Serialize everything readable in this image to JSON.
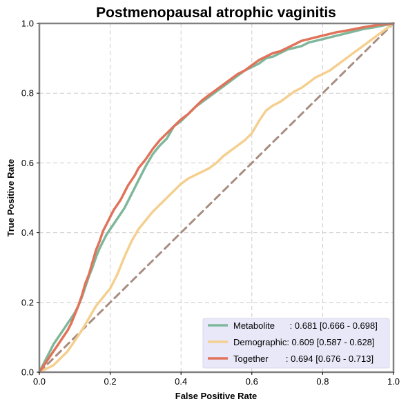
{
  "chart_data": {
    "type": "line",
    "title": "Postmenopausal atrophic vaginitis",
    "xlabel": "False Positive Rate",
    "ylabel": "True Positive Rate",
    "xlim": [
      0,
      1
    ],
    "ylim": [
      0,
      1
    ],
    "xticks": [
      "0.0",
      "0.2",
      "0.4",
      "0.6",
      "0.8",
      "1.0"
    ],
    "yticks": [
      "0.0",
      "0.2",
      "0.4",
      "0.6",
      "0.8",
      "1.0"
    ],
    "grid": true,
    "legend_position": "bottom-right",
    "colors": {
      "metabolite": "#7fb79a",
      "demographic": "#f5cf8f",
      "together": "#e0735a",
      "diagonal": "#a88d80",
      "grid": "#cccccc",
      "legend_bg": "#e8e8f8",
      "frame": "#808080"
    },
    "legend": [
      {
        "label": "Metabolite      : 0.681 [0.666 - 0.698]",
        "color": "#7fb79a"
      },
      {
        "label": "Demographic: 0.609 [0.587 - 0.628]",
        "color": "#f5cf8f"
      },
      {
        "label": "Together       : 0.694 [0.676 - 0.713]",
        "color": "#e0735a"
      }
    ],
    "series": [
      {
        "key": "metabolite",
        "x": [
          0,
          0.01,
          0.02,
          0.03,
          0.04,
          0.05,
          0.06,
          0.07,
          0.08,
          0.09,
          0.1,
          0.11,
          0.12,
          0.13,
          0.14,
          0.15,
          0.16,
          0.17,
          0.18,
          0.19,
          0.2,
          0.21,
          0.22,
          0.23,
          0.24,
          0.25,
          0.26,
          0.27,
          0.28,
          0.3,
          0.32,
          0.34,
          0.36,
          0.38,
          0.4,
          0.42,
          0.44,
          0.46,
          0.48,
          0.5,
          0.52,
          0.54,
          0.56,
          0.58,
          0.6,
          0.62,
          0.64,
          0.66,
          0.68,
          0.7,
          0.72,
          0.74,
          0.76,
          0.78,
          0.8,
          0.82,
          0.84,
          0.86,
          0.88,
          0.9,
          0.92,
          0.94,
          0.96,
          0.98,
          1.0
        ],
        "y": [
          0,
          0.02,
          0.04,
          0.06,
          0.08,
          0.095,
          0.11,
          0.125,
          0.14,
          0.155,
          0.17,
          0.19,
          0.215,
          0.245,
          0.275,
          0.3,
          0.33,
          0.355,
          0.375,
          0.395,
          0.41,
          0.425,
          0.44,
          0.455,
          0.47,
          0.49,
          0.51,
          0.53,
          0.55,
          0.59,
          0.625,
          0.65,
          0.67,
          0.705,
          0.72,
          0.74,
          0.76,
          0.775,
          0.79,
          0.805,
          0.82,
          0.835,
          0.85,
          0.865,
          0.875,
          0.885,
          0.9,
          0.905,
          0.915,
          0.925,
          0.93,
          0.935,
          0.945,
          0.95,
          0.955,
          0.96,
          0.965,
          0.97,
          0.975,
          0.98,
          0.985,
          0.988,
          0.992,
          0.996,
          1.0
        ]
      },
      {
        "key": "demographic",
        "x": [
          0,
          0.02,
          0.04,
          0.06,
          0.08,
          0.1,
          0.12,
          0.14,
          0.16,
          0.18,
          0.2,
          0.22,
          0.24,
          0.26,
          0.28,
          0.3,
          0.32,
          0.34,
          0.36,
          0.38,
          0.4,
          0.42,
          0.44,
          0.46,
          0.48,
          0.5,
          0.52,
          0.54,
          0.56,
          0.58,
          0.6,
          0.62,
          0.64,
          0.66,
          0.68,
          0.7,
          0.72,
          0.74,
          0.76,
          0.78,
          0.8,
          0.82,
          0.84,
          0.86,
          0.88,
          0.9,
          0.92,
          0.94,
          0.96,
          0.98,
          1.0
        ],
        "y": [
          0,
          0.01,
          0.02,
          0.04,
          0.06,
          0.09,
          0.12,
          0.155,
          0.19,
          0.215,
          0.24,
          0.28,
          0.33,
          0.375,
          0.41,
          0.435,
          0.46,
          0.48,
          0.5,
          0.52,
          0.54,
          0.555,
          0.565,
          0.575,
          0.585,
          0.6,
          0.62,
          0.635,
          0.65,
          0.665,
          0.685,
          0.72,
          0.75,
          0.765,
          0.775,
          0.79,
          0.805,
          0.815,
          0.83,
          0.845,
          0.855,
          0.865,
          0.88,
          0.895,
          0.91,
          0.925,
          0.94,
          0.955,
          0.97,
          0.985,
          1.0
        ]
      },
      {
        "key": "together",
        "x": [
          0,
          0.01,
          0.02,
          0.03,
          0.04,
          0.05,
          0.06,
          0.07,
          0.08,
          0.09,
          0.1,
          0.11,
          0.12,
          0.13,
          0.14,
          0.15,
          0.16,
          0.17,
          0.18,
          0.19,
          0.2,
          0.21,
          0.22,
          0.23,
          0.24,
          0.25,
          0.26,
          0.27,
          0.28,
          0.3,
          0.32,
          0.34,
          0.36,
          0.38,
          0.4,
          0.42,
          0.44,
          0.46,
          0.48,
          0.5,
          0.52,
          0.54,
          0.56,
          0.58,
          0.6,
          0.62,
          0.64,
          0.66,
          0.68,
          0.7,
          0.72,
          0.74,
          0.76,
          0.78,
          0.8,
          0.82,
          0.84,
          0.86,
          0.88,
          0.9,
          0.92,
          0.94,
          0.96,
          0.98,
          1.0
        ],
        "y": [
          0,
          0.015,
          0.03,
          0.045,
          0.06,
          0.075,
          0.09,
          0.105,
          0.12,
          0.14,
          0.165,
          0.19,
          0.22,
          0.255,
          0.28,
          0.315,
          0.35,
          0.375,
          0.405,
          0.425,
          0.445,
          0.465,
          0.48,
          0.495,
          0.515,
          0.535,
          0.55,
          0.565,
          0.585,
          0.61,
          0.64,
          0.665,
          0.685,
          0.705,
          0.725,
          0.74,
          0.76,
          0.78,
          0.795,
          0.81,
          0.825,
          0.84,
          0.855,
          0.865,
          0.88,
          0.895,
          0.905,
          0.915,
          0.92,
          0.93,
          0.94,
          0.95,
          0.955,
          0.96,
          0.965,
          0.97,
          0.975,
          0.978,
          0.982,
          0.986,
          0.99,
          0.993,
          0.996,
          0.998,
          1.0
        ]
      },
      {
        "key": "chance",
        "x": [
          0,
          1
        ],
        "y": [
          0,
          1
        ]
      }
    ]
  }
}
